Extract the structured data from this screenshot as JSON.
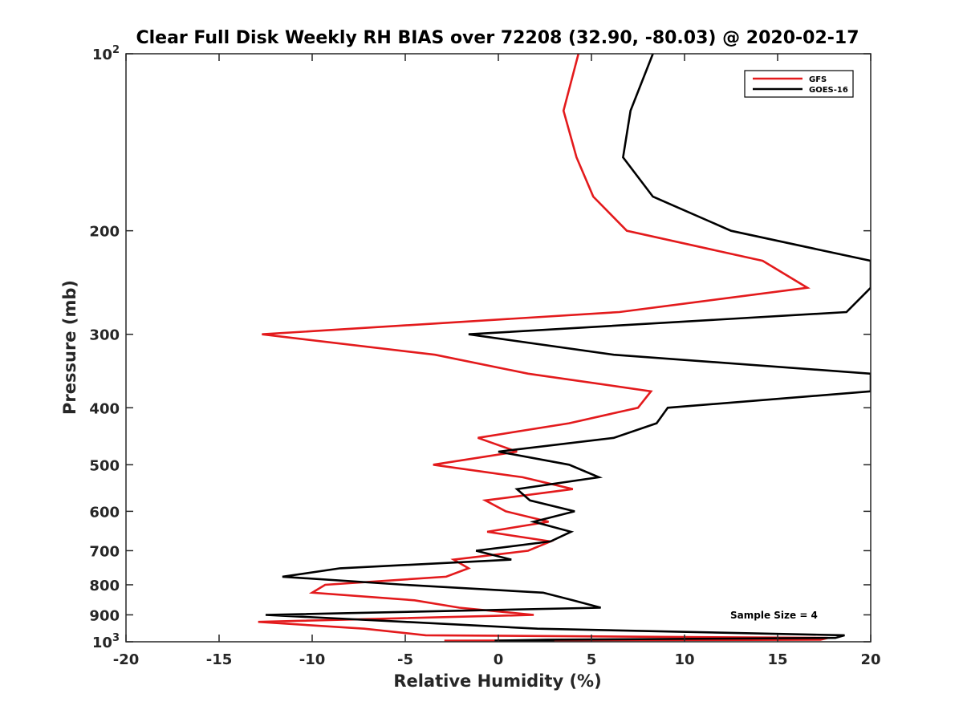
{
  "chart_data": {
    "type": "line",
    "title": "Clear Full Disk Weekly RH BIAS over 72208 (32.90, -80.03) @ 2020-02-17",
    "xlabel": "Relative Humidity (%)",
    "ylabel": "Pressure (mb)",
    "xlim": [
      -20,
      20
    ],
    "ylim": [
      100,
      1000
    ],
    "y_scale": "log",
    "y_reversed": true,
    "x_ticks": [
      "-20",
      "-15",
      "-10",
      "-5",
      "0",
      "5",
      "10",
      "15",
      "20"
    ],
    "y_tick_values": [
      100,
      200,
      300,
      400,
      500,
      600,
      700,
      800,
      900,
      1000
    ],
    "y_tick_labels": [
      {
        "base": "10",
        "exp": "2"
      },
      {
        "base": "200",
        "exp": ""
      },
      {
        "base": "300",
        "exp": ""
      },
      {
        "base": "400",
        "exp": ""
      },
      {
        "base": "500",
        "exp": ""
      },
      {
        "base": "600",
        "exp": ""
      },
      {
        "base": "700",
        "exp": ""
      },
      {
        "base": "800",
        "exp": ""
      },
      {
        "base": "900",
        "exp": ""
      },
      {
        "base": "10",
        "exp": "3"
      }
    ],
    "grid": false,
    "legend_position": "top-right",
    "series": [
      {
        "name": "GFS",
        "color": "#e31a1c",
        "points": [
          [
            4.3,
            100
          ],
          [
            3.5,
            125
          ],
          [
            4.2,
            150
          ],
          [
            5.1,
            175
          ],
          [
            6.9,
            200
          ],
          [
            14.2,
            225
          ],
          [
            16.6,
            250
          ],
          [
            6.5,
            275
          ],
          [
            -12.7,
            300
          ],
          [
            -3.4,
            325
          ],
          [
            1.6,
            350
          ],
          [
            8.2,
            375
          ],
          [
            7.5,
            400
          ],
          [
            3.8,
            425
          ],
          [
            -1.1,
            450
          ],
          [
            1.0,
            475
          ],
          [
            -3.5,
            500
          ],
          [
            1.3,
            525
          ],
          [
            4.0,
            550
          ],
          [
            -0.7,
            575
          ],
          [
            0.4,
            600
          ],
          [
            2.7,
            625
          ],
          [
            -0.6,
            650
          ],
          [
            2.8,
            675
          ],
          [
            1.6,
            700
          ],
          [
            -2.4,
            725
          ],
          [
            -1.6,
            750
          ],
          [
            -2.8,
            775
          ],
          [
            -9.3,
            800
          ],
          [
            -10.0,
            825
          ],
          [
            -4.5,
            850
          ],
          [
            -2.1,
            875
          ],
          [
            1.9,
            900
          ],
          [
            -12.9,
            925
          ],
          [
            -7.2,
            950
          ],
          [
            -3.9,
            975
          ],
          [
            17.7,
            985
          ],
          [
            17.3,
            992
          ],
          [
            -2.9,
            996
          ],
          [
            -0.7,
            998
          ],
          [
            -0.8,
            1000
          ]
        ]
      },
      {
        "name": "GOES-16",
        "color": "#000000",
        "points": [
          [
            8.3,
            100
          ],
          [
            7.1,
            125
          ],
          [
            6.7,
            150
          ],
          [
            8.3,
            175
          ],
          [
            12.5,
            200
          ],
          [
            20.0,
            225
          ],
          [
            20.0,
            250
          ],
          [
            18.7,
            275
          ],
          [
            -1.6,
            300
          ],
          [
            6.2,
            325
          ],
          [
            20.0,
            350
          ],
          [
            20.0,
            375
          ],
          [
            9.1,
            400
          ],
          [
            8.5,
            425
          ],
          [
            6.2,
            450
          ],
          [
            0.0,
            475
          ],
          [
            3.8,
            500
          ],
          [
            5.4,
            525
          ],
          [
            1.0,
            550
          ],
          [
            1.7,
            575
          ],
          [
            4.1,
            600
          ],
          [
            1.9,
            625
          ],
          [
            3.9,
            650
          ],
          [
            2.8,
            675
          ],
          [
            -1.2,
            700
          ],
          [
            0.7,
            725
          ],
          [
            -8.5,
            750
          ],
          [
            -11.6,
            775
          ],
          [
            -5.0,
            800
          ],
          [
            2.4,
            825
          ],
          [
            4.0,
            850
          ],
          [
            5.5,
            875
          ],
          [
            -12.5,
            900
          ],
          [
            -5.0,
            925
          ],
          [
            2.1,
            950
          ],
          [
            18.6,
            975
          ],
          [
            18.1,
            985
          ],
          [
            2.6,
            992
          ],
          [
            -0.2,
            996
          ],
          [
            2.8,
            998
          ],
          [
            3.0,
            1000
          ]
        ]
      }
    ],
    "annotations": [
      {
        "text": "Sample Size = 4"
      }
    ]
  }
}
